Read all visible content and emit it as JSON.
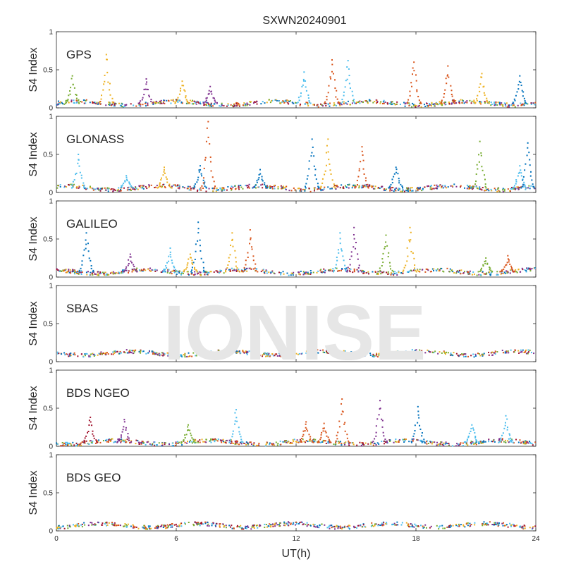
{
  "chart_data": {
    "type": "scatter",
    "title": "SXWN20240901",
    "xlabel": "UT(h)",
    "ylabel": "S4 Index",
    "xlim": [
      0,
      24
    ],
    "xticks": [
      "0",
      "6",
      "12",
      "18",
      "24"
    ],
    "ylim": [
      0,
      1
    ],
    "yticks": [
      "0",
      "0.5",
      "1"
    ],
    "grid": false,
    "watermark": "IONISE",
    "colors": [
      "#0072BD",
      "#D95319",
      "#EDB120",
      "#7E2F8E",
      "#77AC30",
      "#4DBEEE",
      "#A2142F"
    ],
    "panels": [
      {
        "label": "GPS",
        "baseline": 0.06,
        "spikes": [
          {
            "x": 0.8,
            "peak": 0.42,
            "color": 4
          },
          {
            "x": 2.5,
            "peak": 0.7,
            "color": 2
          },
          {
            "x": 4.5,
            "peak": 0.38,
            "color": 3
          },
          {
            "x": 6.3,
            "peak": 0.35,
            "color": 2
          },
          {
            "x": 7.7,
            "peak": 0.28,
            "color": 3
          },
          {
            "x": 12.4,
            "peak": 0.47,
            "color": 5
          },
          {
            "x": 13.8,
            "peak": 0.63,
            "color": 1
          },
          {
            "x": 14.6,
            "peak": 0.62,
            "color": 5
          },
          {
            "x": 17.9,
            "peak": 0.6,
            "color": 1
          },
          {
            "x": 19.6,
            "peak": 0.55,
            "color": 1
          },
          {
            "x": 21.3,
            "peak": 0.45,
            "color": 2
          },
          {
            "x": 23.2,
            "peak": 0.42,
            "color": 0
          }
        ]
      },
      {
        "label": "GLONASS",
        "baseline": 0.06,
        "spikes": [
          {
            "x": 1.1,
            "peak": 0.5,
            "color": 5
          },
          {
            "x": 3.5,
            "peak": 0.22,
            "color": 5
          },
          {
            "x": 5.4,
            "peak": 0.33,
            "color": 2
          },
          {
            "x": 7.2,
            "peak": 0.35,
            "color": 0
          },
          {
            "x": 7.6,
            "peak": 0.93,
            "color": 1
          },
          {
            "x": 10.2,
            "peak": 0.3,
            "color": 0
          },
          {
            "x": 12.8,
            "peak": 0.7,
            "color": 0
          },
          {
            "x": 13.6,
            "peak": 0.7,
            "color": 2
          },
          {
            "x": 15.3,
            "peak": 0.6,
            "color": 1
          },
          {
            "x": 17.0,
            "peak": 0.33,
            "color": 0
          },
          {
            "x": 21.2,
            "peak": 0.67,
            "color": 4
          },
          {
            "x": 23.2,
            "peak": 0.35,
            "color": 5
          },
          {
            "x": 23.6,
            "peak": 0.65,
            "color": 0
          }
        ]
      },
      {
        "label": "GALILEO",
        "baseline": 0.07,
        "spikes": [
          {
            "x": 1.5,
            "peak": 0.58,
            "color": 0
          },
          {
            "x": 3.7,
            "peak": 0.3,
            "color": 3
          },
          {
            "x": 5.7,
            "peak": 0.38,
            "color": 5
          },
          {
            "x": 6.7,
            "peak": 0.3,
            "color": 2
          },
          {
            "x": 7.1,
            "peak": 0.72,
            "color": 0
          },
          {
            "x": 8.8,
            "peak": 0.58,
            "color": 2
          },
          {
            "x": 9.7,
            "peak": 0.62,
            "color": 1
          },
          {
            "x": 14.2,
            "peak": 0.58,
            "color": 5
          },
          {
            "x": 14.9,
            "peak": 0.65,
            "color": 3
          },
          {
            "x": 16.5,
            "peak": 0.55,
            "color": 4
          },
          {
            "x": 17.7,
            "peak": 0.65,
            "color": 2
          },
          {
            "x": 21.5,
            "peak": 0.25,
            "color": 4
          },
          {
            "x": 22.6,
            "peak": 0.28,
            "color": 1
          }
        ]
      },
      {
        "label": "SBAS",
        "baseline": 0.11,
        "spikes": []
      },
      {
        "label": "BDS NGEO",
        "baseline": 0.05,
        "spikes": [
          {
            "x": 1.7,
            "peak": 0.38,
            "color": 6
          },
          {
            "x": 3.4,
            "peak": 0.35,
            "color": 3
          },
          {
            "x": 6.6,
            "peak": 0.28,
            "color": 4
          },
          {
            "x": 9.0,
            "peak": 0.48,
            "color": 5
          },
          {
            "x": 12.5,
            "peak": 0.32,
            "color": 1
          },
          {
            "x": 13.4,
            "peak": 0.3,
            "color": 1
          },
          {
            "x": 14.3,
            "peak": 0.62,
            "color": 1
          },
          {
            "x": 16.2,
            "peak": 0.6,
            "color": 3
          },
          {
            "x": 18.1,
            "peak": 0.52,
            "color": 0
          },
          {
            "x": 20.8,
            "peak": 0.28,
            "color": 5
          },
          {
            "x": 22.5,
            "peak": 0.4,
            "color": 5
          }
        ]
      },
      {
        "label": "BDS GEO",
        "baseline": 0.07,
        "spikes": []
      }
    ]
  }
}
